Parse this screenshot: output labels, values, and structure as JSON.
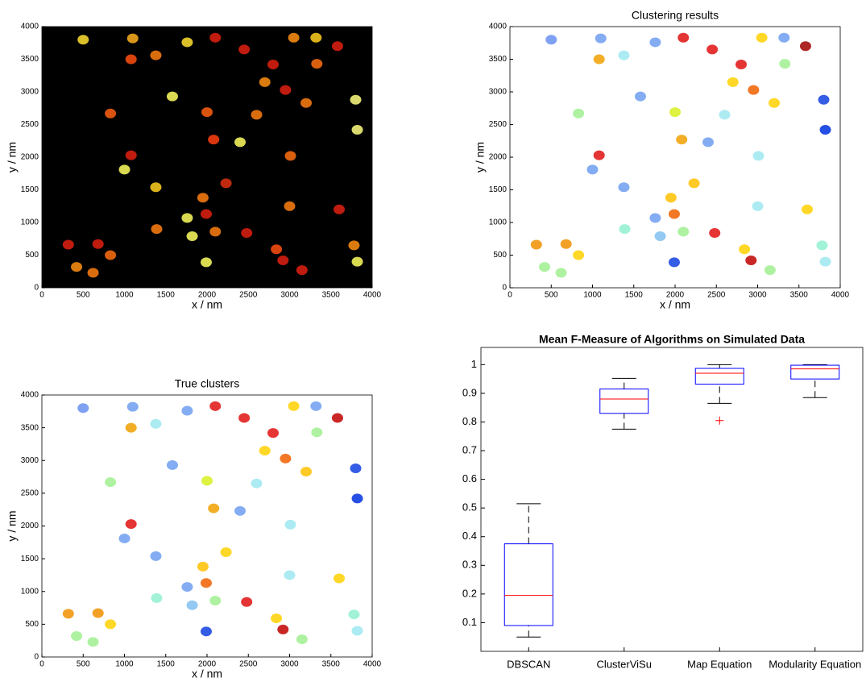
{
  "chart_data": [
    {
      "type": "scatter",
      "xlabel": "x / nm",
      "ylabel": "y / nm",
      "background": "#000000",
      "x": [
        500,
        1100,
        1380,
        1760,
        2100,
        2450,
        3050,
        3320,
        3580,
        1080,
        2800,
        3330,
        2700,
        2950,
        3200,
        3800,
        1580,
        830,
        2000,
        2600,
        3820,
        2080,
        2400,
        3010,
        1080,
        1000,
        1380,
        2230,
        1950,
        1990,
        1760,
        1390,
        3000,
        3600,
        1820,
        2100,
        2480,
        1990,
        2840,
        2920,
        3150,
        3780,
        3820,
        320,
        680,
        420,
        620,
        830
      ],
      "y": [
        3800,
        3820,
        3560,
        3760,
        3830,
        3650,
        3830,
        3830,
        3700,
        3500,
        3420,
        3430,
        3150,
        3030,
        2830,
        2880,
        2930,
        2670,
        2690,
        2650,
        2420,
        2270,
        2230,
        2020,
        2030,
        1810,
        1540,
        1600,
        1380,
        1130,
        1070,
        900,
        1250,
        1200,
        790,
        860,
        840,
        390,
        590,
        420,
        270,
        650,
        400,
        660,
        670,
        320,
        230,
        500
      ],
      "colors": [
        "#ffe030",
        "#ffb020",
        "#ff8010",
        "#ffe030",
        "#e02010",
        "#e02010",
        "#ff9010",
        "#ffd020",
        "#e02010",
        "#ff5010",
        "#e02010",
        "#ff7010",
        "#ff9010",
        "#e02010",
        "#ff8010",
        "#ffff80",
        "#ffff60",
        "#ff6010",
        "#ff6010",
        "#ff8010",
        "#ffff80",
        "#ff4010",
        "#ffff60",
        "#ff7010",
        "#e02010",
        "#ffff60",
        "#ffd020",
        "#e03010",
        "#ff8010",
        "#e02010",
        "#ffff60",
        "#ff8010",
        "#ff8010",
        "#e02010",
        "#ffff60",
        "#ff8010",
        "#e02010",
        "#ffff60",
        "#ff5010",
        "#e02010",
        "#e02010",
        "#ff9010",
        "#ffff60",
        "#e02010",
        "#e02010",
        "#ff9010",
        "#ff8010",
        "#ff7010"
      ],
      "xlim": [
        0,
        4000
      ],
      "ylim": [
        0,
        4000
      ],
      "xticks": [
        0,
        500,
        1000,
        1500,
        2000,
        2500,
        3000,
        3500,
        4000
      ],
      "yticks": [
        0,
        500,
        1000,
        1500,
        2000,
        2500,
        3000,
        3500,
        4000
      ]
    },
    {
      "type": "scatter",
      "title": "Clustering results",
      "xlabel": "x / nm",
      "ylabel": "y / nm",
      "background": "#ffffff",
      "x": [
        500,
        1100,
        1380,
        1760,
        2100,
        2450,
        3050,
        3320,
        3580,
        1080,
        2800,
        3330,
        2700,
        2950,
        3200,
        3800,
        1580,
        830,
        2000,
        2600,
        3820,
        2080,
        2400,
        3010,
        1080,
        1000,
        1380,
        2230,
        1950,
        1990,
        1760,
        1390,
        3000,
        3600,
        1820,
        2100,
        2480,
        1990,
        2840,
        2920,
        3150,
        3780,
        3820,
        320,
        680,
        420,
        620,
        830
      ],
      "y": [
        3800,
        3820,
        3560,
        3760,
        3830,
        3650,
        3830,
        3830,
        3700,
        3500,
        3420,
        3430,
        3150,
        3030,
        2830,
        2880,
        2930,
        2670,
        2690,
        2650,
        2420,
        2270,
        2230,
        2020,
        2030,
        1810,
        1540,
        1600,
        1380,
        1130,
        1070,
        900,
        1250,
        1200,
        790,
        860,
        840,
        390,
        590,
        420,
        270,
        650,
        400,
        660,
        670,
        320,
        230,
        500
      ],
      "colors": [
        "#6a8ff0",
        "#6f9ef0",
        "#9ee8f0",
        "#6f9ef0",
        "#e01010",
        "#e01010",
        "#ffd000",
        "#6f9ef0",
        "#a00000",
        "#f0a000",
        "#e01010",
        "#a0f090",
        "#ffd000",
        "#f06000",
        "#ffd000",
        "#1040e0",
        "#6f9ef0",
        "#a0f090",
        "#d8f020",
        "#9ee8f0",
        "#0030e0",
        "#f0a000",
        "#6f9ef0",
        "#9ee8f0",
        "#e01010",
        "#6f9ef0",
        "#6f9ef0",
        "#ffc000",
        "#ffc000",
        "#f06000",
        "#6f9ef0",
        "#90f0d0",
        "#9ee8f0",
        "#ffd000",
        "#80c0f0",
        "#a0f090",
        "#e01010",
        "#1040e0",
        "#ffd000",
        "#c00000",
        "#a0f090",
        "#90f0d0",
        "#9ee8f0",
        "#f09000",
        "#f09000",
        "#a0f090",
        "#a0f090",
        "#ffd000"
      ],
      "xlim": [
        0,
        4000
      ],
      "ylim": [
        0,
        4000
      ],
      "xticks": [
        0,
        500,
        1000,
        1500,
        2000,
        2500,
        3000,
        3500,
        4000
      ],
      "yticks": [
        0,
        500,
        1000,
        1500,
        2000,
        2500,
        3000,
        3500,
        4000
      ]
    },
    {
      "type": "scatter",
      "title": "True clusters",
      "xlabel": "x / nm",
      "ylabel": "y / nm",
      "background": "#ffffff",
      "x": [
        500,
        1100,
        1380,
        1760,
        2100,
        2450,
        3050,
        3320,
        3580,
        1080,
        2800,
        3330,
        2700,
        2950,
        3200,
        3800,
        1580,
        830,
        2000,
        2600,
        3820,
        2080,
        2400,
        3010,
        1080,
        1000,
        1380,
        2230,
        1950,
        1990,
        1760,
        1390,
        3000,
        3600,
        1820,
        2100,
        2480,
        1990,
        2840,
        2920,
        3150,
        3780,
        3820,
        320,
        680,
        420,
        620,
        830
      ],
      "y": [
        3800,
        3820,
        3560,
        3760,
        3830,
        3650,
        3830,
        3830,
        3650,
        3500,
        3420,
        3430,
        3150,
        3030,
        2830,
        2880,
        2930,
        2670,
        2690,
        2650,
        2420,
        2270,
        2230,
        2020,
        2030,
        1810,
        1540,
        1600,
        1380,
        1130,
        1070,
        900,
        1250,
        1200,
        790,
        860,
        840,
        390,
        590,
        420,
        270,
        650,
        400,
        660,
        670,
        320,
        230,
        500
      ],
      "colors": [
        "#6a8ff0",
        "#6f9ef0",
        "#9ee8f0",
        "#6f9ef0",
        "#e01010",
        "#e01010",
        "#ffd000",
        "#6f9ef0",
        "#c00000",
        "#f0a000",
        "#e01010",
        "#a0f090",
        "#ffd000",
        "#f06000",
        "#ffc000",
        "#1040e0",
        "#6f9ef0",
        "#a0f090",
        "#d8f020",
        "#9ee8f0",
        "#0030e0",
        "#f0a000",
        "#6f9ef0",
        "#9ee8f0",
        "#e01010",
        "#6f9ef0",
        "#6f9ef0",
        "#ffd000",
        "#ffc000",
        "#f06000",
        "#6f9ef0",
        "#90f0d0",
        "#9ee8f0",
        "#ffd000",
        "#80c0f0",
        "#a0f090",
        "#e01010",
        "#1040e0",
        "#ffd000",
        "#c00000",
        "#a0f090",
        "#90f0d0",
        "#9ee8f0",
        "#f09000",
        "#f09000",
        "#a0f090",
        "#a0f090",
        "#ffd000"
      ],
      "xlim": [
        0,
        4000
      ],
      "ylim": [
        0,
        4000
      ],
      "xticks": [
        0,
        500,
        1000,
        1500,
        2000,
        2500,
        3000,
        3500,
        4000
      ],
      "yticks": [
        0,
        500,
        1000,
        1500,
        2000,
        2500,
        3000,
        3500,
        4000
      ]
    },
    {
      "type": "box",
      "title": "Mean F-Measure of Algorithms on Simulated Data",
      "categories": [
        "DBSCAN",
        "ClusterViSu",
        "Map Equation",
        "Modularity Equation"
      ],
      "stats": [
        {
          "min": 0.05,
          "q1": 0.09,
          "median": 0.195,
          "q3": 0.375,
          "max": 0.515,
          "outliers": []
        },
        {
          "min": 0.775,
          "q1": 0.83,
          "median": 0.88,
          "q3": 0.915,
          "max": 0.952,
          "outliers": []
        },
        {
          "min": 0.865,
          "q1": 0.932,
          "median": 0.97,
          "q3": 0.987,
          "max": 1.0,
          "outliers": [
            0.805
          ]
        },
        {
          "min": 0.885,
          "q1": 0.95,
          "median": 0.985,
          "q3": 0.998,
          "max": 1.0,
          "outliers": []
        }
      ],
      "box_color": "#0000ff",
      "median_color": "#ff0000",
      "whisker_color": "#000000",
      "outlier_color": "#ff0000",
      "ylim": [
        0,
        1.06
      ],
      "yticks": [
        0.1,
        0.2,
        0.3,
        0.4,
        0.5,
        0.6,
        0.7,
        0.8,
        0.9,
        1
      ]
    }
  ]
}
